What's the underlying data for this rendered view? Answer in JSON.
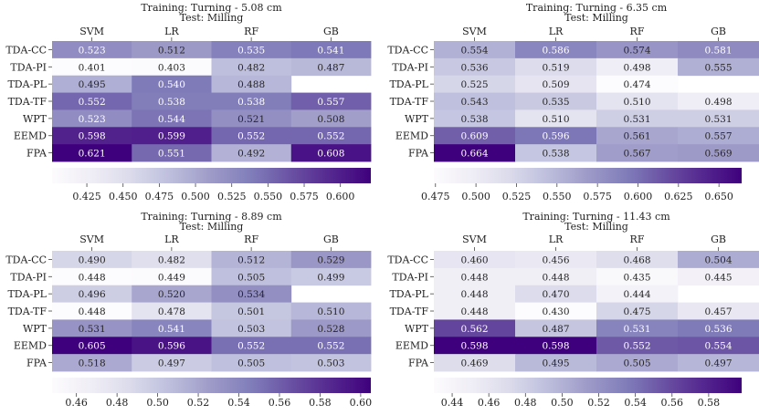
{
  "chart_data": [
    {
      "type": "heatmap",
      "title": "Training: Turning - 5.08 cm",
      "subtitle": "Test: Milling",
      "columns": [
        "SVM",
        "LR",
        "RF",
        "GB"
      ],
      "rows": [
        "TDA-CC",
        "TDA-PI",
        "TDA-PL",
        "TDA-TF",
        "WPT",
        "EEMD",
        "FPA"
      ],
      "values": [
        [
          0.523,
          0.512,
          0.535,
          0.541
        ],
        [
          0.401,
          0.403,
          0.482,
          0.487
        ],
        [
          0.495,
          0.54,
          0.488,
          null
        ],
        [
          0.552,
          0.538,
          0.538,
          0.557
        ],
        [
          0.523,
          0.544,
          0.521,
          0.508
        ],
        [
          0.598,
          0.599,
          0.552,
          0.552
        ],
        [
          0.621,
          0.551,
          0.492,
          0.608
        ]
      ],
      "vmin": 0.401,
      "vmax": 0.621,
      "colorbar_ticks": [
        0.425,
        0.45,
        0.475,
        0.5,
        0.525,
        0.55,
        0.575,
        0.6
      ],
      "colorbar_labels": [
        "0.425",
        "0.450",
        "0.475",
        "0.500",
        "0.525",
        "0.550",
        "0.575",
        "0.600"
      ]
    },
    {
      "type": "heatmap",
      "title": "Training: Turning - 6.35 cm",
      "subtitle": "Test: Milling",
      "columns": [
        "SVM",
        "LR",
        "RF",
        "GB"
      ],
      "rows": [
        "TDA-CC",
        "TDA-PI",
        "TDA-PL",
        "TDA-TF",
        "WPT",
        "EEMD",
        "FPA"
      ],
      "values": [
        [
          0.554,
          0.586,
          0.574,
          0.581
        ],
        [
          0.536,
          0.519,
          0.498,
          0.555
        ],
        [
          0.525,
          0.509,
          0.474,
          null
        ],
        [
          0.543,
          0.535,
          0.51,
          0.498
        ],
        [
          0.538,
          0.51,
          0.531,
          0.531
        ],
        [
          0.609,
          0.596,
          0.561,
          0.557
        ],
        [
          0.664,
          0.538,
          0.567,
          0.569
        ]
      ],
      "vmin": 0.474,
      "vmax": 0.664,
      "colorbar_ticks": [
        0.475,
        0.5,
        0.525,
        0.55,
        0.575,
        0.6,
        0.625,
        0.65
      ],
      "colorbar_labels": [
        "0.475",
        "0.500",
        "0.525",
        "0.550",
        "0.575",
        "0.600",
        "0.625",
        "0.650"
      ]
    },
    {
      "type": "heatmap",
      "title": "Training: Turning - 8.89 cm",
      "subtitle": "Test: Milling",
      "columns": [
        "SVM",
        "LR",
        "RF",
        "GB"
      ],
      "rows": [
        "TDA-CC",
        "TDA-PI",
        "TDA-PL",
        "TDA-TF",
        "WPT",
        "EEMD",
        "FPA"
      ],
      "values": [
        [
          0.49,
          0.482,
          0.512,
          0.529
        ],
        [
          0.448,
          0.449,
          0.505,
          0.499
        ],
        [
          0.496,
          0.52,
          0.534,
          null
        ],
        [
          0.448,
          0.478,
          0.501,
          0.51
        ],
        [
          0.531,
          0.541,
          0.503,
          0.528
        ],
        [
          0.605,
          0.596,
          0.552,
          0.552
        ],
        [
          0.518,
          0.497,
          0.505,
          0.503
        ]
      ],
      "vmin": 0.448,
      "vmax": 0.605,
      "colorbar_ticks": [
        0.46,
        0.48,
        0.5,
        0.52,
        0.54,
        0.56,
        0.58,
        0.6
      ],
      "colorbar_labels": [
        "0.46",
        "0.48",
        "0.50",
        "0.52",
        "0.54",
        "0.56",
        "0.58",
        "0.60"
      ]
    },
    {
      "type": "heatmap",
      "title": "Training: Turning - 11.43 cm",
      "subtitle": "Test: Milling",
      "columns": [
        "SVM",
        "LR",
        "RF",
        "GB"
      ],
      "rows": [
        "TDA-CC",
        "TDA-PI",
        "TDA-PL",
        "TDA-TF",
        "WPT",
        "EEMD",
        "FPA"
      ],
      "values": [
        [
          0.46,
          0.456,
          0.468,
          0.504
        ],
        [
          0.448,
          0.448,
          0.435,
          0.445
        ],
        [
          0.448,
          0.47,
          0.444,
          null
        ],
        [
          0.448,
          0.43,
          0.475,
          0.457
        ],
        [
          0.562,
          0.487,
          0.531,
          0.536
        ],
        [
          0.598,
          0.598,
          0.552,
          0.554
        ],
        [
          0.469,
          0.495,
          0.505,
          0.497
        ]
      ],
      "vmin": 0.43,
      "vmax": 0.598,
      "colorbar_ticks": [
        0.44,
        0.46,
        0.48,
        0.5,
        0.52,
        0.54,
        0.56,
        0.58
      ],
      "colorbar_labels": [
        "0.44",
        "0.46",
        "0.48",
        "0.50",
        "0.52",
        "0.54",
        "0.56",
        "0.58"
      ]
    }
  ]
}
